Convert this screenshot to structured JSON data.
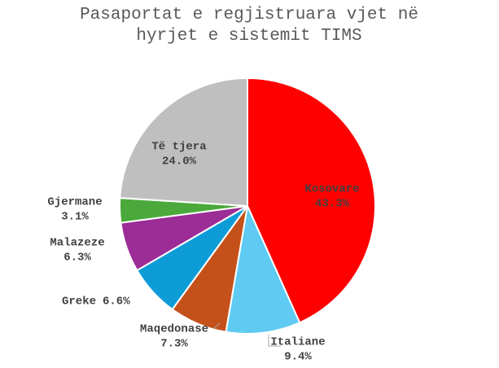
{
  "chart_data": {
    "type": "pie",
    "title": "Pasaportat e regjistruara vjet në hyrjet e sistemit TIMS",
    "categories": [
      "Kosovare",
      "Italiane",
      "Maqedonase",
      "Greke",
      "Malazeze",
      "Gjermane",
      "Të tjera"
    ],
    "values": [
      43.3,
      9.4,
      7.3,
      6.6,
      6.3,
      3.1,
      24.0
    ],
    "value_labels": [
      "43.3%",
      "9.4%",
      "7.3%",
      "6.6%",
      "6.3%",
      "3.1%",
      "24.0%"
    ],
    "colors": [
      "#ff0000",
      "#5fcaf2",
      "#c5511a",
      "#0e9cd7",
      "#9c2c96",
      "#4aa93a",
      "#bfbfbf"
    ]
  }
}
